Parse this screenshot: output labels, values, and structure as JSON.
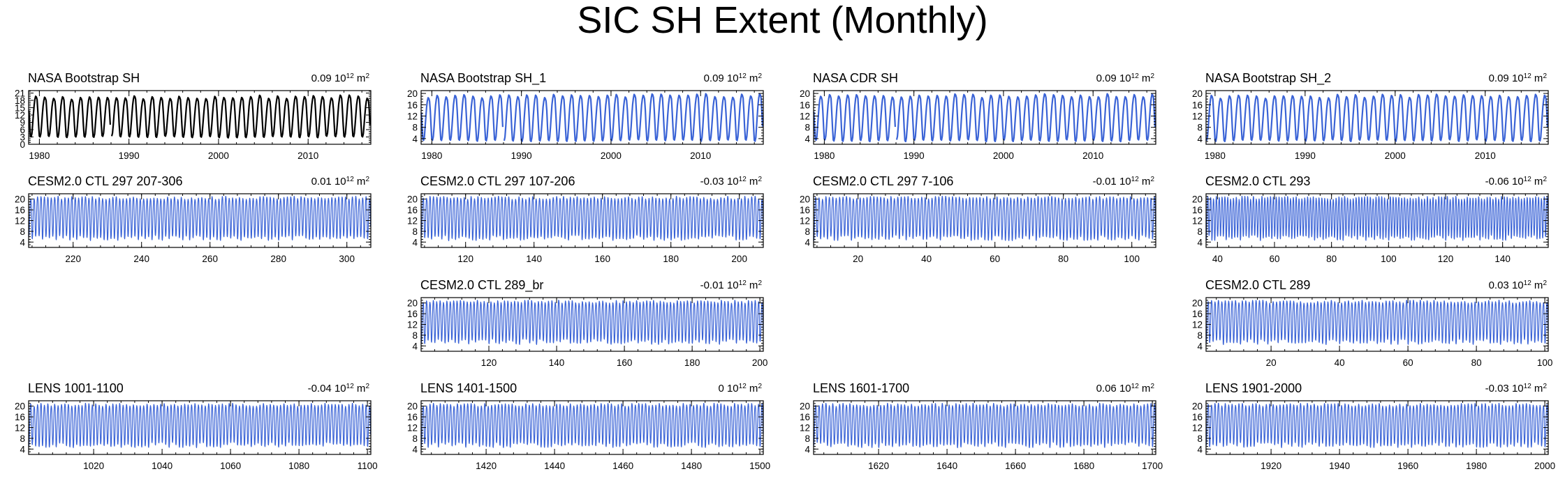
{
  "title": "SIC SH Extent (Monthly)",
  "trend_units": "10^12 m^2",
  "colors": {
    "obs": "#000000",
    "model": "#3a63d6",
    "axis": "#000000"
  },
  "chart_data": [
    {
      "id": "nasa-bootstrap-sh",
      "type": "line",
      "title": "NASA Bootstrap SH",
      "trend": "0.09",
      "color": "#000000",
      "xlim": [
        1978.8,
        2017.0
      ],
      "ylim": [
        0,
        22
      ],
      "xticks": [
        1980,
        1990,
        2000,
        2010
      ],
      "xtick_labels": [
        "1980",
        "1990",
        "2000",
        "2010"
      ],
      "yticks": [
        0,
        3,
        6,
        9,
        12,
        15,
        18,
        21
      ],
      "ytick_labels": [
        "0",
        "3",
        "6",
        "9",
        "12",
        "15",
        "18",
        "21"
      ],
      "series": {
        "name": "monthly SH extent",
        "start": 1978.83,
        "step": 0.0833333,
        "n": 458,
        "min": 3.0,
        "max": 19.0,
        "min_jitter": 0.35,
        "max_jitter": 0.7,
        "trend_per_step": 0.0012,
        "gap": [
          1987.95,
          1988.05
        ]
      }
    },
    {
      "id": "nasa-bootstrap-sh-1",
      "type": "line",
      "title": "NASA Bootstrap SH_1",
      "trend": "0.09",
      "color": "#3a63d6",
      "xlim": [
        1978.8,
        2017.0
      ],
      "ylim": [
        2,
        21
      ],
      "xticks": [
        1980,
        1990,
        2000,
        2010
      ],
      "xtick_labels": [
        "1980",
        "1990",
        "2000",
        "2010"
      ],
      "yticks": [
        4,
        8,
        12,
        16,
        20
      ],
      "ytick_labels": [
        "4",
        "8",
        "12",
        "16",
        "20"
      ],
      "series": {
        "name": "monthly SH extent",
        "start": 1978.83,
        "step": 0.0833333,
        "n": 458,
        "min": 3.3,
        "max": 18.8,
        "min_jitter": 0.35,
        "max_jitter": 0.7,
        "trend_per_step": 0.0012,
        "gap": [
          1987.95,
          1988.05
        ]
      }
    },
    {
      "id": "nasa-cdr-sh",
      "type": "line",
      "title": "NASA CDR SH",
      "trend": "0.09",
      "color": "#3a63d6",
      "xlim": [
        1978.8,
        2017.0
      ],
      "ylim": [
        2,
        21
      ],
      "xticks": [
        1980,
        1990,
        2000,
        2010
      ],
      "xtick_labels": [
        "1980",
        "1990",
        "2000",
        "2010"
      ],
      "yticks": [
        4,
        8,
        12,
        16,
        20
      ],
      "ytick_labels": [
        "4",
        "8",
        "12",
        "16",
        "20"
      ],
      "series": {
        "name": "monthly SH extent",
        "start": 1978.83,
        "step": 0.0833333,
        "n": 458,
        "min": 3.3,
        "max": 18.9,
        "min_jitter": 0.35,
        "max_jitter": 0.7,
        "trend_per_step": 0.0012,
        "gap": [
          1987.95,
          1988.05
        ]
      }
    },
    {
      "id": "nasa-bootstrap-sh-2",
      "type": "line",
      "title": "NASA Bootstrap SH_2",
      "trend": "0.09",
      "color": "#3a63d6",
      "xlim": [
        1979.0,
        2017.0
      ],
      "ylim": [
        2,
        21
      ],
      "xticks": [
        1980,
        1990,
        2000,
        2010
      ],
      "xtick_labels": [
        "1980",
        "1990",
        "2000",
        "2010"
      ],
      "yticks": [
        4,
        8,
        12,
        16,
        20
      ],
      "ytick_labels": [
        "4",
        "8",
        "12",
        "16",
        "20"
      ],
      "series": {
        "name": "monthly SH extent",
        "start": 1979.0,
        "step": 0.0833333,
        "n": 456,
        "min": 3.3,
        "max": 18.8,
        "min_jitter": 0.35,
        "max_jitter": 0.7,
        "trend_per_step": 0.0012
      }
    },
    {
      "id": "cesm2-ctl-297-207-306",
      "type": "line",
      "title": "CESM2.0 CTL 297 207-306",
      "trend": "0.01",
      "color": "#3a63d6",
      "xlim": [
        207,
        307
      ],
      "ylim": [
        2,
        22
      ],
      "xticks": [
        220,
        240,
        260,
        280,
        300
      ],
      "xtick_labels": [
        "220",
        "240",
        "260",
        "280",
        "300"
      ],
      "yticks": [
        4,
        8,
        12,
        16,
        20
      ],
      "ytick_labels": [
        "4",
        "8",
        "12",
        "16",
        "20"
      ],
      "series": {
        "name": "monthly SH extent",
        "start": 207,
        "step": 0.0833333,
        "n": 1200,
        "min": 5.5,
        "max": 20.5,
        "min_jitter": 1.0,
        "max_jitter": 0.6
      }
    },
    {
      "id": "cesm2-ctl-297-107-206",
      "type": "line",
      "title": "CESM2.0 CTL 297 107-206",
      "trend": "-0.03",
      "color": "#3a63d6",
      "xlim": [
        107,
        207
      ],
      "ylim": [
        2,
        22
      ],
      "xticks": [
        120,
        140,
        160,
        180,
        200
      ],
      "xtick_labels": [
        "120",
        "140",
        "160",
        "180",
        "200"
      ],
      "yticks": [
        4,
        8,
        12,
        16,
        20
      ],
      "ytick_labels": [
        "4",
        "8",
        "12",
        "16",
        "20"
      ],
      "series": {
        "name": "monthly SH extent",
        "start": 107,
        "step": 0.0833333,
        "n": 1200,
        "min": 5.5,
        "max": 20.5,
        "min_jitter": 1.0,
        "max_jitter": 0.6
      }
    },
    {
      "id": "cesm2-ctl-297-7-106",
      "type": "line",
      "title": "CESM2.0 CTL 297 7-106",
      "trend": "-0.01",
      "color": "#3a63d6",
      "xlim": [
        7,
        107
      ],
      "ylim": [
        2,
        22
      ],
      "xticks": [
        20,
        40,
        60,
        80,
        100
      ],
      "xtick_labels": [
        "20",
        "40",
        "60",
        "80",
        "100"
      ],
      "yticks": [
        4,
        8,
        12,
        16,
        20
      ],
      "ytick_labels": [
        "4",
        "8",
        "12",
        "16",
        "20"
      ],
      "series": {
        "name": "monthly SH extent",
        "start": 7,
        "step": 0.0833333,
        "n": 1200,
        "min": 5.5,
        "max": 20.5,
        "min_jitter": 1.0,
        "max_jitter": 0.6
      }
    },
    {
      "id": "cesm2-ctl-293",
      "type": "line",
      "title": "CESM2.0 CTL 293",
      "trend": "-0.06",
      "color": "#3a63d6",
      "xlim": [
        36,
        156
      ],
      "ylim": [
        2,
        22
      ],
      "xticks": [
        40,
        60,
        80,
        100,
        120,
        140
      ],
      "xtick_labels": [
        "40",
        "60",
        "80",
        "100",
        "120",
        "140"
      ],
      "yticks": [
        4,
        8,
        12,
        16,
        20
      ],
      "ytick_labels": [
        "4",
        "8",
        "12",
        "16",
        "20"
      ],
      "series": {
        "name": "monthly SH extent",
        "start": 36,
        "step": 0.0833333,
        "n": 1440,
        "min": 5.5,
        "max": 20.5,
        "min_jitter": 1.0,
        "max_jitter": 0.6
      }
    },
    {
      "id": "cesm2-ctl-289-br",
      "type": "line",
      "title": "CESM2.0 CTL 289_br",
      "trend": "-0.01",
      "color": "#3a63d6",
      "xlim": [
        100,
        201
      ],
      "ylim": [
        2,
        22
      ],
      "xticks": [
        120,
        140,
        160,
        180,
        200
      ],
      "xtick_labels": [
        "120",
        "140",
        "160",
        "180",
        "200"
      ],
      "yticks": [
        4,
        8,
        12,
        16,
        20
      ],
      "ytick_labels": [
        "4",
        "8",
        "12",
        "16",
        "20"
      ],
      "series": {
        "name": "monthly SH extent",
        "start": 100,
        "step": 0.0833333,
        "n": 1212,
        "min": 5.5,
        "max": 20.5,
        "min_jitter": 1.0,
        "max_jitter": 0.6
      }
    },
    {
      "id": "cesm2-ctl-289",
      "type": "line",
      "title": "CESM2.0 CTL 289",
      "trend": "0.03",
      "color": "#3a63d6",
      "xlim": [
        1,
        101
      ],
      "ylim": [
        2,
        22
      ],
      "xticks": [
        20,
        40,
        60,
        80,
        100
      ],
      "xtick_labels": [
        "20",
        "40",
        "60",
        "80",
        "100"
      ],
      "yticks": [
        4,
        8,
        12,
        16,
        20
      ],
      "ytick_labels": [
        "4",
        "8",
        "12",
        "16",
        "20"
      ],
      "series": {
        "name": "monthly SH extent",
        "start": 1,
        "step": 0.0833333,
        "n": 1200,
        "min": 5.5,
        "max": 20.5,
        "min_jitter": 1.0,
        "max_jitter": 0.6
      }
    },
    {
      "id": "lens-1001-1100",
      "type": "line",
      "title": "LENS 1001-1100",
      "trend": "-0.04",
      "color": "#3a63d6",
      "xlim": [
        1001,
        1101
      ],
      "ylim": [
        2,
        22
      ],
      "xticks": [
        1020,
        1040,
        1060,
        1080,
        1100
      ],
      "xtick_labels": [
        "1020",
        "1040",
        "1060",
        "1080",
        "1100"
      ],
      "yticks": [
        4,
        8,
        12,
        16,
        20
      ],
      "ytick_labels": [
        "4",
        "8",
        "12",
        "16",
        "20"
      ],
      "series": {
        "name": "monthly SH extent",
        "start": 1001,
        "step": 0.0833333,
        "n": 1200,
        "min": 5.5,
        "max": 20.5,
        "min_jitter": 1.0,
        "max_jitter": 0.6
      }
    },
    {
      "id": "lens-1401-1500",
      "type": "line",
      "title": "LENS 1401-1500",
      "trend": "0",
      "color": "#3a63d6",
      "xlim": [
        1401,
        1501
      ],
      "ylim": [
        2,
        22
      ],
      "xticks": [
        1420,
        1440,
        1460,
        1480,
        1500
      ],
      "xtick_labels": [
        "1420",
        "1440",
        "1460",
        "1480",
        "1500"
      ],
      "yticks": [
        4,
        8,
        12,
        16,
        20
      ],
      "ytick_labels": [
        "4",
        "8",
        "12",
        "16",
        "20"
      ],
      "series": {
        "name": "monthly SH extent",
        "start": 1401,
        "step": 0.0833333,
        "n": 1200,
        "min": 5.5,
        "max": 20.5,
        "min_jitter": 1.0,
        "max_jitter": 0.6
      }
    },
    {
      "id": "lens-1601-1700",
      "type": "line",
      "title": "LENS 1601-1700",
      "trend": "0.06",
      "color": "#3a63d6",
      "xlim": [
        1601,
        1701
      ],
      "ylim": [
        2,
        22
      ],
      "xticks": [
        1620,
        1640,
        1660,
        1680,
        1700
      ],
      "xtick_labels": [
        "1620",
        "1640",
        "1660",
        "1680",
        "1700"
      ],
      "yticks": [
        4,
        8,
        12,
        16,
        20
      ],
      "ytick_labels": [
        "4",
        "8",
        "12",
        "16",
        "20"
      ],
      "series": {
        "name": "monthly SH extent",
        "start": 1601,
        "step": 0.0833333,
        "n": 1200,
        "min": 5.5,
        "max": 20.5,
        "min_jitter": 1.0,
        "max_jitter": 0.6
      }
    },
    {
      "id": "lens-1901-2000",
      "type": "line",
      "title": "LENS 1901-2000",
      "trend": "-0.03",
      "color": "#3a63d6",
      "xlim": [
        1901,
        2001
      ],
      "ylim": [
        2,
        22
      ],
      "xticks": [
        1920,
        1940,
        1960,
        1980,
        2000
      ],
      "xtick_labels": [
        "1920",
        "1940",
        "1960",
        "1980",
        "2000"
      ],
      "yticks": [
        4,
        8,
        12,
        16,
        20
      ],
      "ytick_labels": [
        "4",
        "8",
        "12",
        "16",
        "20"
      ],
      "series": {
        "name": "monthly SH extent",
        "start": 1901,
        "step": 0.0833333,
        "n": 1200,
        "min": 5.5,
        "max": 20.5,
        "min_jitter": 1.0,
        "max_jitter": 0.6
      }
    }
  ]
}
